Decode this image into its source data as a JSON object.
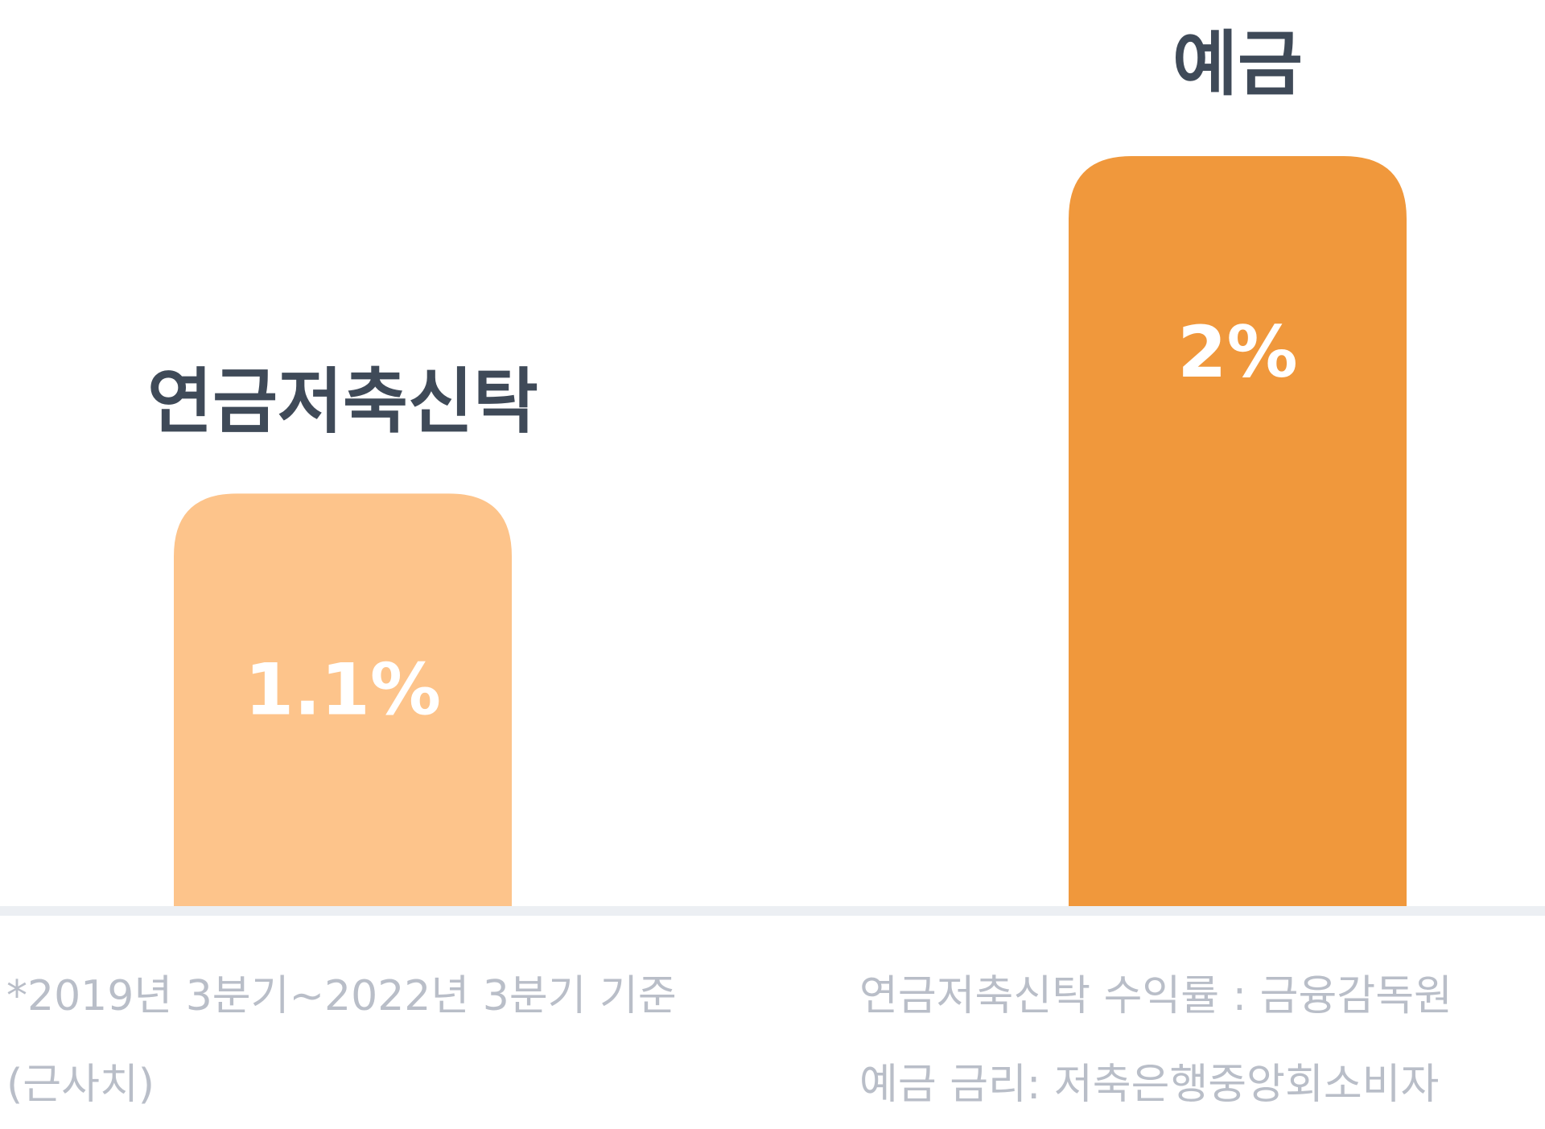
{
  "chart_data": {
    "type": "bar",
    "categories": [
      "연금저축신탁",
      "예금"
    ],
    "values": [
      1.1,
      2
    ],
    "value_labels": [
      "1.1%",
      "2%"
    ],
    "colors": [
      "#fdc48b",
      "#f0983c"
    ],
    "label_color": "#3f4a58",
    "value_label_color": "#ffffff",
    "baseline_color": "#eceff3",
    "ylim": [
      0,
      2.2
    ],
    "grid": false,
    "legend": "none"
  },
  "notes": {
    "color": "#b9bec8",
    "left": [
      "*2019년 3분기~2022년 3분기 기준",
      "(근사치)"
    ],
    "right": [
      "연금저축신탁 수익률 : 금융감독원",
      "예금 금리: 저축은행중앙회소비자"
    ]
  }
}
